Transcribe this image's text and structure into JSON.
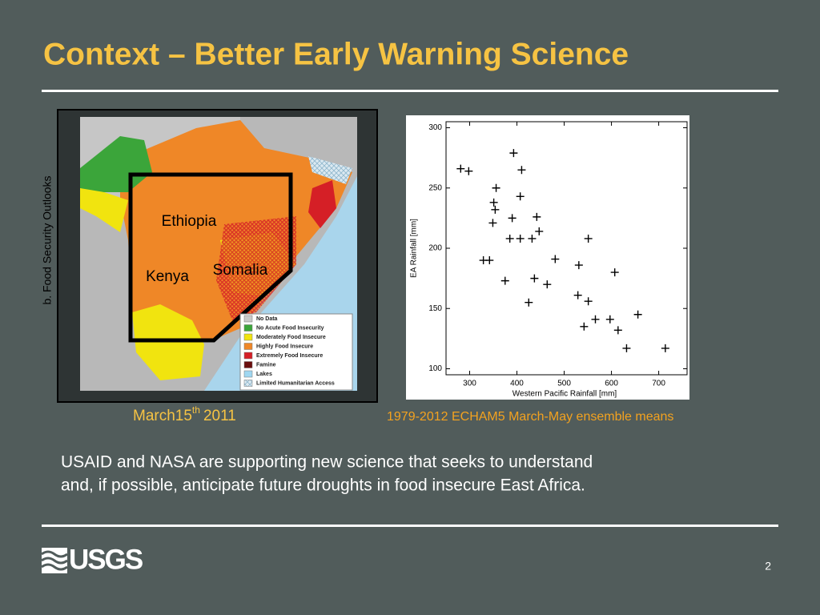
{
  "header": {
    "title": "Context – Better Early Warning Science"
  },
  "map": {
    "side_label": "b. Food Security Outlooks",
    "regions": [
      "Ethiopia",
      "Kenya",
      "Somalia"
    ],
    "legend": [
      {
        "label": "No Data",
        "color": "#c9c9c9"
      },
      {
        "label": "No Acute Food Insecurity",
        "color": "#3ba53a"
      },
      {
        "label": "Moderately Food Insecure",
        "color": "#f1e40f"
      },
      {
        "label": "Highly Food Insecure",
        "color": "#ef8727"
      },
      {
        "label": "Extremely Food Insecure",
        "color": "#d51f26"
      },
      {
        "label": "Famine",
        "color": "#6a0e0e"
      },
      {
        "label": "Lakes",
        "color": "#9fd7f1"
      },
      {
        "label": "Limited Humanitarian Access",
        "color": "#cfe3ef"
      }
    ],
    "caption": {
      "text": "March15",
      "sup": "th",
      "year": "2011"
    }
  },
  "chart_data": {
    "type": "scatter",
    "xlabel": "Western Pacific Rainfall [mm]",
    "ylabel": "EA Rainfall [mm]",
    "caption": "1979-2012 ECHAM5 March-May ensemble means",
    "color": "#000000",
    "x": [
      281,
      298,
      393,
      410,
      356,
      407,
      351,
      354,
      390,
      442,
      349,
      447,
      385,
      407,
      432,
      551,
      329,
      342,
      481,
      531,
      607,
      375,
      437,
      464,
      529,
      551,
      425,
      656,
      566,
      597,
      542,
      614,
      632,
      714
    ],
    "y": [
      266,
      264,
      279,
      265,
      250,
      243,
      238,
      232,
      225,
      226,
      221,
      214,
      208,
      208,
      208,
      208,
      190,
      190,
      191,
      186,
      180,
      173,
      175,
      170,
      161,
      156,
      155,
      145,
      141,
      141,
      135,
      132,
      117,
      117
    ],
    "xlim": [
      250,
      760
    ],
    "ylim": [
      95,
      305
    ],
    "xticks": [
      300,
      400,
      500,
      600,
      700
    ],
    "yticks": [
      100,
      150,
      200,
      250,
      300
    ]
  },
  "body": {
    "lines": [
      "USAID and NASA are supporting new science that seeks to understand",
      "and, if possible, anticipate future droughts in food insecure East Africa."
    ]
  },
  "footer": {
    "logo": "USGS",
    "page": "2"
  }
}
